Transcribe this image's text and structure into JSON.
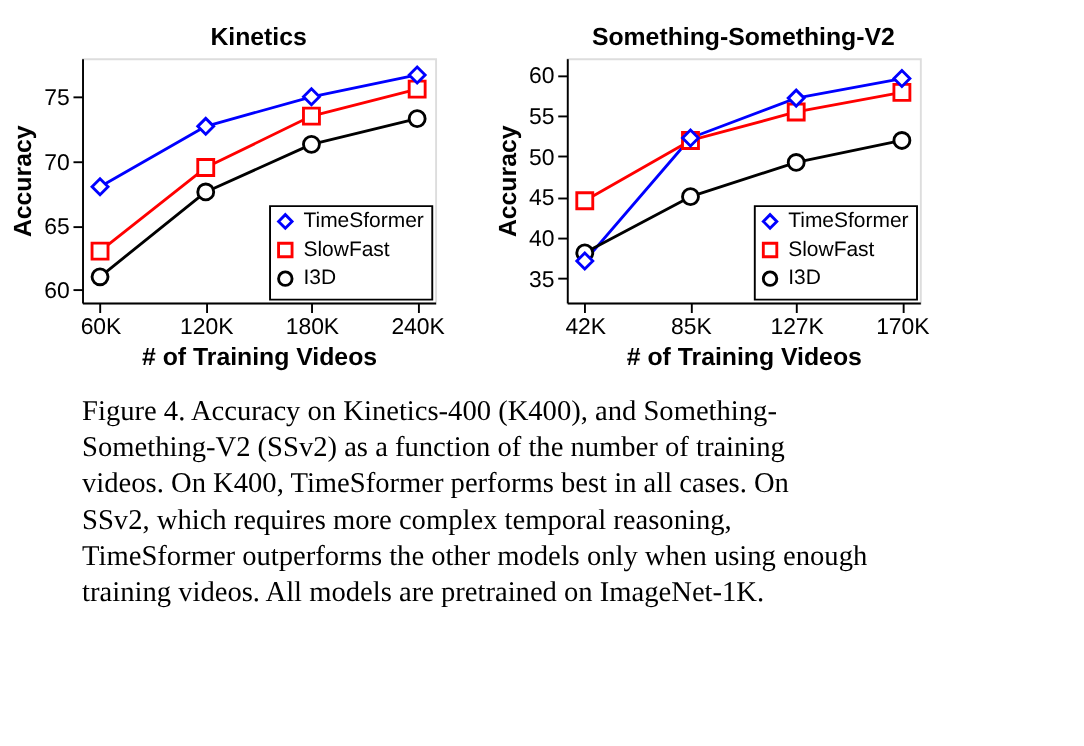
{
  "chart_data": [
    {
      "type": "line",
      "title": "Kinetics",
      "xlabel": "# of Training Videos",
      "ylabel": "Accuracy",
      "categories": [
        "60K",
        "120K",
        "180K",
        "240K"
      ],
      "ylim": [
        59,
        78
      ],
      "yticks": [
        60,
        65,
        70,
        75
      ],
      "grid": false,
      "legend": "bottom right",
      "line_style": "solid",
      "series": [
        {
          "name": "TimeSformer",
          "color": "#0000ff",
          "marker": "diamond",
          "values": [
            68.0,
            72.7,
            75.0,
            76.7
          ]
        },
        {
          "name": "SlowFast",
          "color": "#ff0000",
          "marker": "square",
          "values": [
            63.0,
            69.5,
            73.5,
            75.6
          ]
        },
        {
          "name": "I3D",
          "color": "#000000",
          "marker": "circle",
          "values": [
            61.0,
            67.6,
            71.3,
            73.3
          ]
        }
      ]
    },
    {
      "type": "line",
      "title": "Something-Something-V2",
      "xlabel": "# of Training Videos",
      "ylabel": "Accuracy",
      "categories": [
        "42K",
        "85K",
        "127K",
        "170K"
      ],
      "ylim": [
        32,
        62
      ],
      "yticks": [
        35,
        40,
        45,
        50,
        55,
        60
      ],
      "grid": false,
      "legend": "bottom right",
      "line_style": "solid",
      "series": [
        {
          "name": "TimeSformer",
          "color": "#0000ff",
          "marker": "diamond",
          "values": [
            37.1,
            52.2,
            57.1,
            59.5
          ]
        },
        {
          "name": "SlowFast",
          "color": "#ff0000",
          "marker": "square",
          "values": [
            44.5,
            51.9,
            55.4,
            57.8
          ]
        },
        {
          "name": "I3D",
          "color": "#000000",
          "marker": "circle",
          "values": [
            38.1,
            45.0,
            49.2,
            51.9
          ]
        }
      ],
      "annotations": [
        "Figure 4. Accuracy on Kinetics-400 (K400), and Something-Something-V2 (SSv2) as a function of the number of training videos. On K400, TimeSformer performs best in all cases. On SSv2, which requires more complex temporal reasoning, TimeSformer outperforms the other models only when using enough training videos. All models are pretrained on ImageNet-1K."
      ]
    }
  ]
}
